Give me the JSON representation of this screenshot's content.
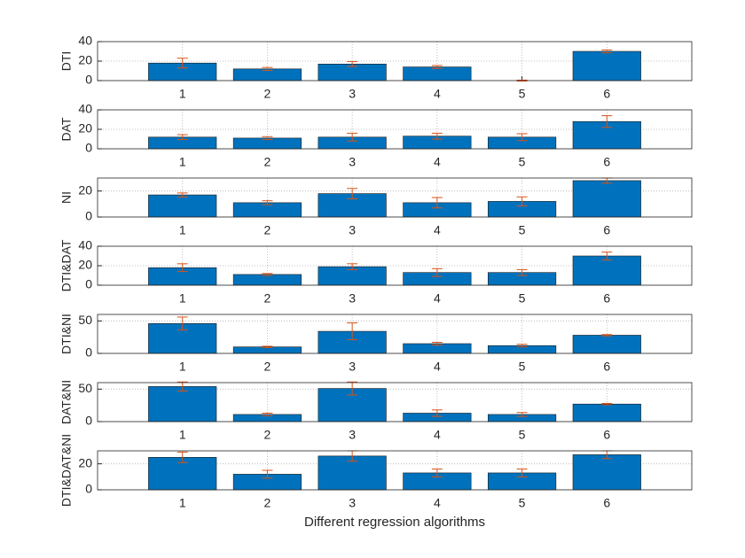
{
  "chart_data": [
    {
      "type": "bar",
      "ylabel": "DTI",
      "x": [
        1,
        2,
        3,
        4,
        5,
        6
      ],
      "values": [
        18,
        12,
        17,
        14,
        0,
        30
      ],
      "errors": [
        5,
        1.5,
        2.5,
        1.5,
        0.5,
        1.5
      ],
      "xlim": [
        0,
        7
      ],
      "xticks": [
        1,
        2,
        3,
        4,
        5,
        6
      ],
      "ylim": [
        0,
        40
      ],
      "yticks": [
        0,
        20,
        40
      ],
      "color": "#0072BD",
      "error_color": "#D95319",
      "grid": true
    },
    {
      "type": "bar",
      "ylabel": "DAT",
      "x": [
        1,
        2,
        3,
        4,
        5,
        6
      ],
      "values": [
        12,
        11,
        12,
        13,
        12,
        28
      ],
      "errors": [
        2.5,
        1.5,
        4,
        3,
        3.5,
        6
      ],
      "xlim": [
        0,
        7
      ],
      "xticks": [
        1,
        2,
        3,
        4,
        5,
        6
      ],
      "ylim": [
        0,
        40
      ],
      "yticks": [
        0,
        20,
        40
      ],
      "color": "#0072BD",
      "error_color": "#D95319",
      "grid": true
    },
    {
      "type": "bar",
      "ylabel": "NI",
      "x": [
        1,
        2,
        3,
        4,
        5,
        6
      ],
      "values": [
        17,
        11,
        18,
        11,
        12,
        28
      ],
      "errors": [
        1.5,
        1.5,
        4,
        4,
        3.5,
        2
      ],
      "xlim": [
        0,
        7
      ],
      "xticks": [
        1,
        2,
        3,
        4,
        5,
        6
      ],
      "ylim": [
        0,
        30
      ],
      "yticks": [
        0,
        20
      ],
      "color": "#0072BD",
      "error_color": "#D95319",
      "grid": true
    },
    {
      "type": "bar",
      "ylabel": "DTI&DAT",
      "x": [
        1,
        2,
        3,
        4,
        5,
        6
      ],
      "values": [
        18,
        11,
        19,
        13,
        13,
        30
      ],
      "errors": [
        4,
        1,
        3,
        4,
        3,
        4
      ],
      "xlim": [
        0,
        7
      ],
      "xticks": [
        1,
        2,
        3,
        4,
        5,
        6
      ],
      "ylim": [
        0,
        40
      ],
      "yticks": [
        0,
        20,
        40
      ],
      "color": "#0072BD",
      "error_color": "#D95319",
      "grid": true
    },
    {
      "type": "bar",
      "ylabel": "DTI&NI",
      "x": [
        1,
        2,
        3,
        4,
        5,
        6
      ],
      "values": [
        46,
        10,
        34,
        15,
        12,
        28
      ],
      "errors": [
        10,
        1,
        13,
        2,
        2,
        1
      ],
      "xlim": [
        0,
        7
      ],
      "xticks": [
        1,
        2,
        3,
        4,
        5,
        6
      ],
      "ylim": [
        0,
        60
      ],
      "yticks": [
        0,
        50
      ],
      "color": "#0072BD",
      "error_color": "#D95319",
      "grid": true
    },
    {
      "type": "bar",
      "ylabel": "DAT&NI",
      "x": [
        1,
        2,
        3,
        4,
        5,
        6
      ],
      "values": [
        54,
        11,
        51,
        13,
        11,
        27
      ],
      "errors": [
        7,
        2,
        10,
        5,
        3,
        1
      ],
      "xlim": [
        0,
        7
      ],
      "xticks": [
        1,
        2,
        3,
        4,
        5,
        6
      ],
      "ylim": [
        0,
        60
      ],
      "yticks": [
        0,
        50
      ],
      "color": "#0072BD",
      "error_color": "#D95319",
      "grid": true
    },
    {
      "type": "bar",
      "ylabel": "DTI&DAT&NI",
      "xlabel": "Different regression algorithms",
      "x": [
        1,
        2,
        3,
        4,
        5,
        6
      ],
      "values": [
        25,
        12,
        26,
        13,
        13,
        27
      ],
      "errors": [
        4,
        3,
        4,
        3,
        3,
        3
      ],
      "xlim": [
        0,
        7
      ],
      "xticks": [
        1,
        2,
        3,
        4,
        5,
        6
      ],
      "ylim": [
        0,
        30
      ],
      "yticks": [
        0,
        20
      ],
      "color": "#0072BD",
      "error_color": "#D95319",
      "grid": true
    }
  ]
}
